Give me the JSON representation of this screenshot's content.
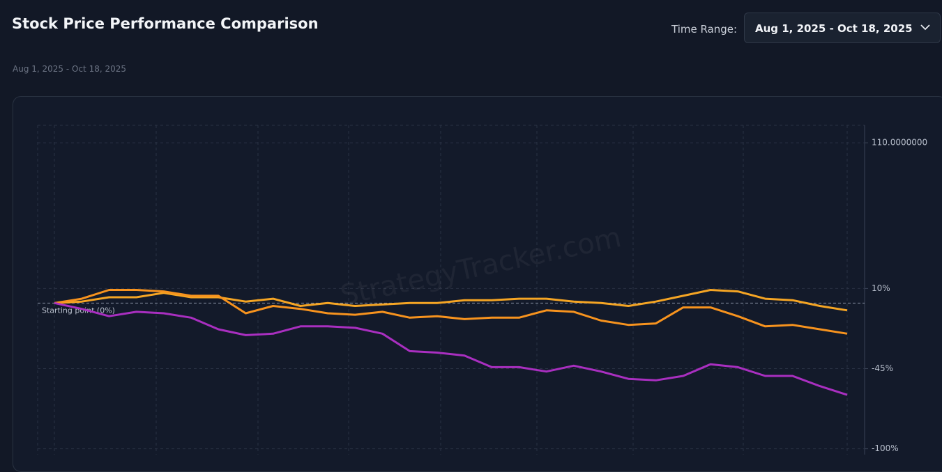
{
  "header": {
    "title": "Stock Price Performance Comparison",
    "subtitle": "Aug 1, 2025 - Oct 18, 2025",
    "range_label": "Time Range:",
    "range_value": "Aug 1, 2025 - Oct 18, 2025"
  },
  "chart_data": {
    "type": "line",
    "watermark": "StrategyTracker.com",
    "reference_line": {
      "value": 0,
      "label": "Starting point (0%)"
    },
    "ylim": [
      -104,
      122
    ],
    "yticks": [
      {
        "value": 110,
        "label": "110.0000000"
      },
      {
        "value": 10,
        "label": "10%"
      },
      {
        "value": -45,
        "label": "-45%"
      },
      {
        "value": -100,
        "label": "-100%"
      }
    ],
    "grid": true,
    "series": [
      {
        "color": "#f5a524",
        "values": [
          0,
          1,
          4,
          4,
          7,
          4,
          4,
          1,
          3,
          -2,
          0,
          -2,
          -1,
          0,
          0,
          2,
          2,
          3,
          3,
          1,
          0,
          -2,
          1,
          5,
          9,
          8,
          3,
          2,
          -2,
          -5
        ]
      },
      {
        "color": "#f7931e",
        "values": [
          0,
          3,
          9,
          9,
          8,
          5,
          5,
          -7,
          -2,
          -4,
          -7,
          -8,
          -6,
          -10,
          -9,
          -11,
          -10,
          -10,
          -5,
          -6,
          -12,
          -15,
          -14,
          -3,
          -3,
          -9,
          -16,
          -15,
          -18,
          -21
        ]
      },
      {
        "color": "#a92fc0",
        "values": [
          0,
          -4,
          -9,
          -6,
          -7,
          -10,
          -18,
          -22,
          -21,
          -16,
          -16,
          -17,
          -21,
          -33,
          -34,
          -36,
          -44,
          -44,
          -47,
          -43,
          -47,
          -52,
          -53,
          -50,
          -42,
          -44,
          -50,
          -50,
          -57,
          -63
        ]
      }
    ]
  }
}
